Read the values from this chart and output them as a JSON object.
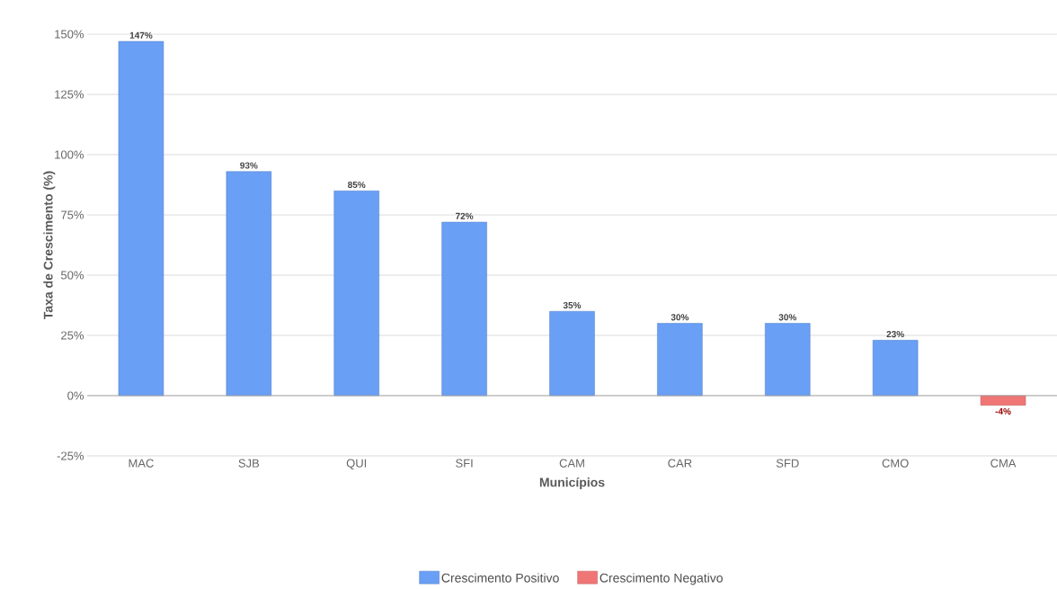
{
  "chart_data": {
    "type": "bar",
    "xlabel": "Municípios",
    "ylabel": "Taxa de Crescimento (%)",
    "categories": [
      "MAC",
      "SJB",
      "QUI",
      "SFI",
      "CAM",
      "CAR",
      "SFD",
      "CMO",
      "CMA"
    ],
    "series": [
      {
        "name": "Crescimento Positivo",
        "color": "#699ff5",
        "values": [
          147,
          93,
          85,
          72,
          35,
          30,
          30,
          23,
          null
        ],
        "value_labels": [
          "147%",
          "93%",
          "85%",
          "72%",
          "35%",
          "30%",
          "30%",
          "23%",
          null
        ]
      },
      {
        "name": "Crescimento Negativo",
        "color": "#f07575",
        "values": [
          null,
          null,
          null,
          null,
          null,
          null,
          null,
          null,
          -4
        ],
        "value_labels": [
          null,
          null,
          null,
          null,
          null,
          null,
          null,
          null,
          "-4%"
        ]
      }
    ],
    "ylim": [
      -25,
      150
    ],
    "yticks": [
      {
        "value": -25,
        "label": "-25%"
      },
      {
        "value": 0,
        "label": "0%"
      },
      {
        "value": 25,
        "label": "25%"
      },
      {
        "value": 50,
        "label": "50%"
      },
      {
        "value": 75,
        "label": "75%"
      },
      {
        "value": 100,
        "label": "100%"
      },
      {
        "value": 125,
        "label": "125%"
      },
      {
        "value": 150,
        "label": "150%"
      }
    ],
    "grid": "y",
    "legend": "bottom"
  }
}
